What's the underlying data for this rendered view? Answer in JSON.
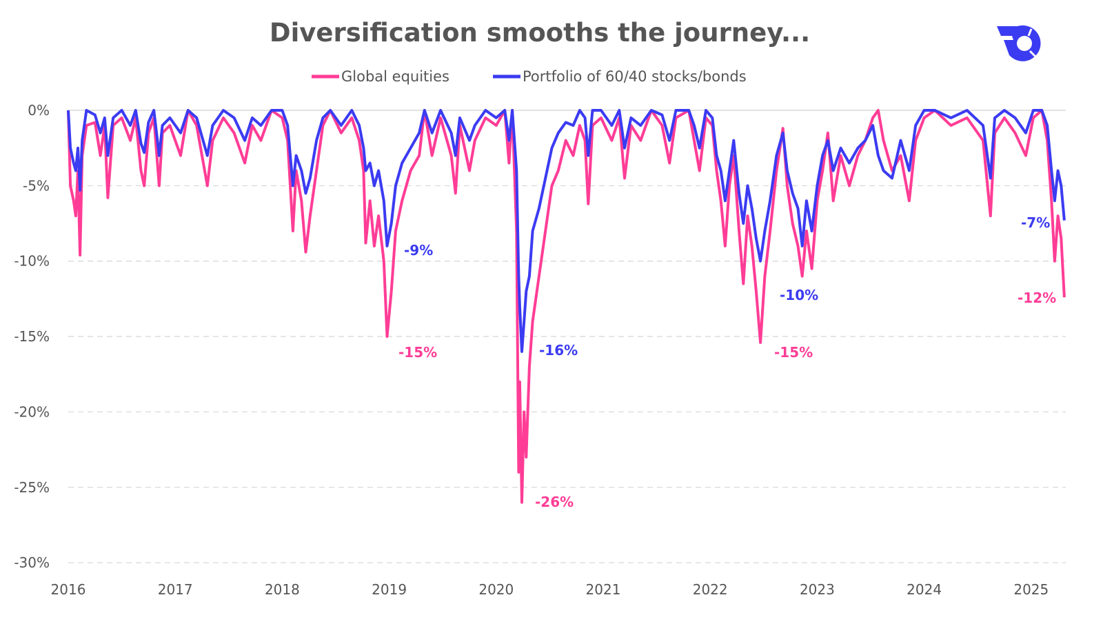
{
  "chart_data": {
    "type": "line",
    "title": "Diversification smooths the journey...",
    "xlabel": "",
    "ylabel": "",
    "xlim": [
      2016,
      2025.32
    ],
    "ylim": [
      -30,
      0
    ],
    "x_ticks": [
      "2016",
      "2017",
      "2018",
      "2019",
      "2020",
      "2021",
      "2022",
      "2023",
      "2024",
      "2025"
    ],
    "y_ticks": [
      "0%",
      "-5%",
      "-10%",
      "-15%",
      "-20%",
      "-25%",
      "-30%"
    ],
    "grid": true,
    "legend_position": "top-center",
    "colors": {
      "equities": "#ff3d96",
      "portfolio": "#3b3bf2"
    },
    "x": [
      2016.0,
      2016.02,
      2016.05,
      2016.07,
      2016.09,
      2016.11,
      2016.13,
      2016.17,
      2016.25,
      2016.3,
      2016.34,
      2016.37,
      2016.42,
      2016.5,
      2016.58,
      2016.63,
      2016.68,
      2016.71,
      2016.75,
      2016.8,
      2016.85,
      2016.88,
      2016.95,
      2017.05,
      2017.12,
      2017.2,
      2017.3,
      2017.35,
      2017.45,
      2017.55,
      2017.65,
      2017.72,
      2017.8,
      2017.9,
      2018.0,
      2018.05,
      2018.1,
      2018.13,
      2018.18,
      2018.22,
      2018.26,
      2018.32,
      2018.38,
      2018.45,
      2018.55,
      2018.65,
      2018.72,
      2018.76,
      2018.78,
      2018.82,
      2018.86,
      2018.9,
      2018.95,
      2018.98,
      2019.02,
      2019.06,
      2019.12,
      2019.2,
      2019.28,
      2019.33,
      2019.4,
      2019.48,
      2019.58,
      2019.62,
      2019.66,
      2019.75,
      2019.8,
      2019.9,
      2020.0,
      2020.08,
      2020.12,
      2020.15,
      2020.19,
      2020.21,
      2020.22,
      2020.24,
      2020.26,
      2020.28,
      2020.31,
      2020.34,
      2020.4,
      2020.46,
      2020.52,
      2020.58,
      2020.65,
      2020.72,
      2020.78,
      2020.83,
      2020.86,
      2020.9,
      2020.98,
      2021.08,
      2021.15,
      2021.2,
      2021.26,
      2021.35,
      2021.45,
      2021.55,
      2021.62,
      2021.68,
      2021.8,
      2021.85,
      2021.9,
      2021.96,
      2022.02,
      2022.06,
      2022.1,
      2022.14,
      2022.18,
      2022.22,
      2022.27,
      2022.31,
      2022.35,
      2022.39,
      2022.43,
      2022.47,
      2022.51,
      2022.56,
      2022.62,
      2022.68,
      2022.72,
      2022.77,
      2022.82,
      2022.86,
      2022.9,
      2022.95,
      2023.0,
      2023.05,
      2023.1,
      2023.15,
      2023.22,
      2023.3,
      2023.38,
      2023.45,
      2023.52,
      2023.57,
      2023.62,
      2023.7,
      2023.78,
      2023.86,
      2023.92,
      2024.0,
      2024.1,
      2024.25,
      2024.4,
      2024.55,
      2024.62,
      2024.66,
      2024.75,
      2024.85,
      2024.95,
      2025.02,
      2025.1,
      2025.15,
      2025.19,
      2025.22,
      2025.25,
      2025.28,
      2025.31
    ],
    "series": [
      {
        "name": "Global equities",
        "values": [
          0,
          -5,
          -6,
          -7,
          -4,
          -9.6,
          -3,
          -1,
          -0.8,
          -3,
          -1,
          -5.8,
          -1,
          -0.5,
          -2,
          -0.5,
          -4,
          -5,
          -1.5,
          -0.5,
          -5,
          -1.5,
          -1,
          -3,
          0,
          -1,
          -5,
          -2,
          -0.5,
          -1.5,
          -3.5,
          -1,
          -2,
          0,
          -0.5,
          -2,
          -8,
          -4,
          -6,
          -9.4,
          -7,
          -4,
          -1,
          0,
          -1.5,
          -0.5,
          -2,
          -4,
          -8.8,
          -6,
          -9,
          -7,
          -10,
          -15,
          -12,
          -8,
          -6,
          -4,
          -3,
          0,
          -3,
          -0.5,
          -3,
          -5.5,
          -1,
          -4,
          -2,
          -0.5,
          -1,
          0,
          -3.5,
          0,
          -8,
          -24,
          -18,
          -26,
          -20,
          -23,
          -17,
          -14,
          -11,
          -8,
          -5,
          -4,
          -2,
          -3,
          -1,
          -2,
          -6.2,
          -1,
          -0.5,
          -2,
          -0.5,
          -4.5,
          -1,
          -2,
          0,
          -1,
          -3.5,
          -0.5,
          0,
          -2,
          -4,
          -0.5,
          -1,
          -4,
          -6,
          -9,
          -5,
          -3,
          -8,
          -11.5,
          -7,
          -9,
          -12,
          -15.4,
          -11,
          -8,
          -4,
          -1.2,
          -5,
          -7.5,
          -9,
          -11,
          -8,
          -10.5,
          -6,
          -4,
          -1.5,
          -6,
          -3,
          -5,
          -3,
          -2,
          -0.5,
          0,
          -2,
          -4,
          -3,
          -6,
          -2,
          -0.5,
          0,
          -1,
          -0.5,
          -2,
          -7,
          -1.5,
          -0.5,
          -1.5,
          -3,
          -0.5,
          0,
          -2,
          -6,
          -10,
          -7,
          -8.5,
          -12.4
        ]
      },
      {
        "name": "Portfolio of 60/40 stocks/bonds",
        "values": [
          0,
          -2.5,
          -3.5,
          -4,
          -2.5,
          -5.3,
          -2,
          0,
          -0.3,
          -1.5,
          -0.5,
          -3,
          -0.5,
          0,
          -1,
          0,
          -2.2,
          -2.8,
          -0.8,
          0,
          -3,
          -1,
          -0.5,
          -1.5,
          0,
          -0.5,
          -3,
          -1,
          0,
          -0.5,
          -2,
          -0.5,
          -1,
          0,
          0,
          -1,
          -5,
          -3,
          -4,
          -5.5,
          -4.5,
          -2,
          -0.5,
          0,
          -1,
          0,
          -1,
          -2.5,
          -4,
          -3.5,
          -5,
          -4,
          -6,
          -9,
          -7.5,
          -5,
          -3.5,
          -2.5,
          -1.5,
          0,
          -1.5,
          0,
          -1.5,
          -3,
          -0.5,
          -2,
          -1,
          0,
          -0.5,
          0,
          -2,
          0,
          -4,
          -11,
          -13,
          -16,
          -14,
          -12,
          -11,
          -8,
          -6.5,
          -4.5,
          -2.5,
          -1.5,
          -0.8,
          -1,
          0,
          -0.5,
          -3,
          0,
          0,
          -1,
          0,
          -2.5,
          -0.5,
          -1,
          0,
          -0.3,
          -2,
          0,
          0,
          -1,
          -2.5,
          0,
          -0.5,
          -3,
          -4,
          -6,
          -4,
          -2,
          -5.5,
          -7.5,
          -5,
          -6.5,
          -8.5,
          -10,
          -8,
          -6,
          -3,
          -1.5,
          -4,
          -5.5,
          -6.5,
          -9,
          -6,
          -8,
          -5,
          -3,
          -2,
          -4,
          -2.5,
          -3.5,
          -2.5,
          -2,
          -1,
          -3,
          -4,
          -4.5,
          -2,
          -4,
          -1,
          0,
          0,
          -0.5,
          0,
          -1,
          -4.5,
          -0.5,
          0,
          -0.5,
          -1.5,
          0,
          0,
          -1,
          -4,
          -6,
          -4,
          -5,
          -7.3
        ]
      }
    ],
    "annotations": [
      {
        "text": "-9%",
        "series": "Portfolio of 60/40 stocks/bonds"
      },
      {
        "text": "-15%",
        "series": "Global equities"
      },
      {
        "text": "-16%",
        "series": "Portfolio of 60/40 stocks/bonds"
      },
      {
        "text": "-26%",
        "series": "Global equities"
      },
      {
        "text": "-10%",
        "series": "Portfolio of 60/40 stocks/bonds"
      },
      {
        "text": "-15%",
        "series": "Global equities"
      },
      {
        "text": "-7%",
        "series": "Portfolio of 60/40 stocks/bonds"
      },
      {
        "text": "-12%",
        "series": "Global equities"
      }
    ]
  },
  "logo": {
    "icon": "brand-logo-icon",
    "color": "#3b3bf2"
  }
}
